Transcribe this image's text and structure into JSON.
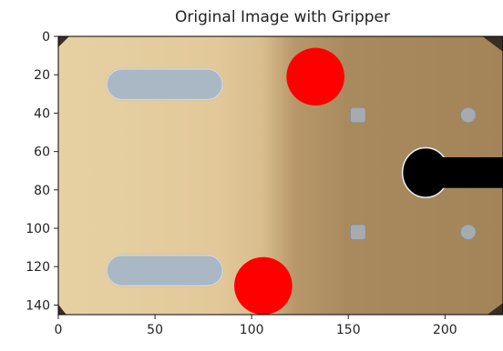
{
  "chart_data": {
    "type": "image",
    "title": "Original Image with Gripper",
    "xlabel": "",
    "ylabel": "",
    "xlim": [
      0,
      230
    ],
    "ylim": [
      145,
      0
    ],
    "x_ticks": [
      0,
      50,
      100,
      150,
      200
    ],
    "y_ticks": [
      0,
      20,
      40,
      60,
      80,
      100,
      120,
      140
    ],
    "grid": false,
    "markers": [
      {
        "label": "gripper-point-1",
        "x": 133,
        "y": 21,
        "radius": 15,
        "color": "#ff0000"
      },
      {
        "label": "gripper-point-2",
        "x": 106,
        "y": 130,
        "radius": 15,
        "color": "#ff0000"
      }
    ],
    "scene": {
      "slots": [
        {
          "x0": 25,
          "x1": 85,
          "y0": 17,
          "y1": 33
        },
        {
          "x0": 25,
          "x1": 85,
          "y0": 114,
          "y1": 130
        }
      ],
      "squares": [
        {
          "x": 155,
          "y": 41,
          "w": 8,
          "h": 8
        },
        {
          "x": 155,
          "y": 102,
          "w": 8,
          "h": 8
        }
      ],
      "dots": [
        {
          "x": 212,
          "y": 41,
          "r": 4
        },
        {
          "x": 212,
          "y": 102,
          "r": 4
        }
      ],
      "notch": {
        "x0": 178,
        "cy": 71,
        "r": 12,
        "x1": 230,
        "h": 16
      }
    },
    "colors": {
      "plate_light": "#e8d4a6",
      "plate_mid": "#d9c090",
      "plate_dark": "#a5875a",
      "slot": "#a9b8c4",
      "hole": "#a5abae",
      "notch": "#000000",
      "marker": "#ff0000",
      "frame": "#000000"
    }
  }
}
